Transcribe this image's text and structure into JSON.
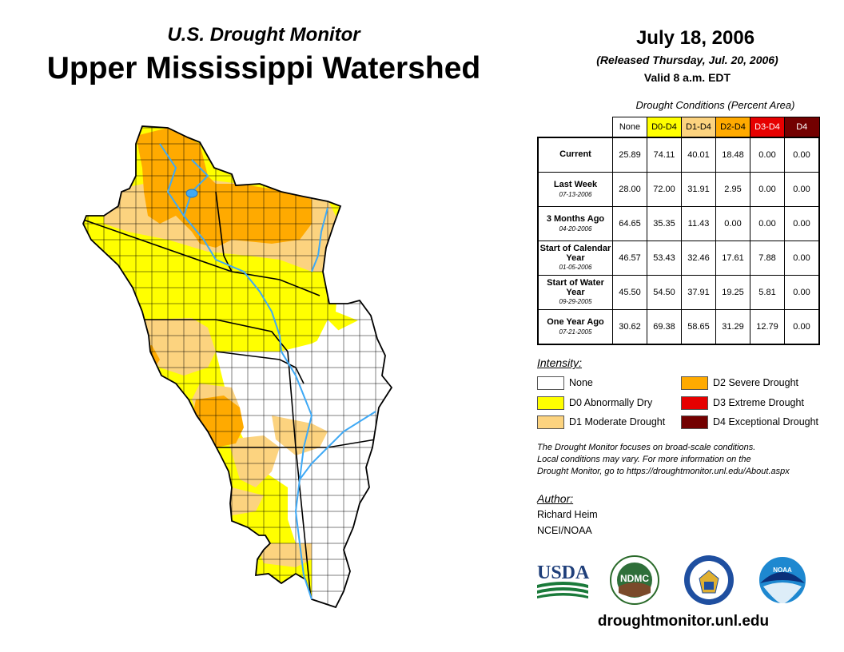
{
  "header": {
    "subtitle": "U.S. Drought Monitor",
    "title": "Upper Mississippi Watershed",
    "date": "July 18, 2006",
    "released": "(Released Thursday, Jul. 20, 2006)",
    "valid": "Valid 8 a.m. EDT"
  },
  "conditions_table": {
    "caption": "Drought Conditions (Percent Area)",
    "columns": [
      {
        "label": "None",
        "color": "#ffffff",
        "text_color": "#000000"
      },
      {
        "label": "D0-D4",
        "color": "#ffff00",
        "text_color": "#000000"
      },
      {
        "label": "D1-D4",
        "color": "#fcd37f",
        "text_color": "#000000"
      },
      {
        "label": "D2-D4",
        "color": "#ffaa00",
        "text_color": "#000000"
      },
      {
        "label": "D3-D4",
        "color": "#e60000",
        "text_color": "#ffffff"
      },
      {
        "label": "D4",
        "color": "#730000",
        "text_color": "#ffffff"
      }
    ],
    "rows": [
      {
        "label": "Current",
        "date": "",
        "values": [
          "25.89",
          "74.11",
          "40.01",
          "18.48",
          "0.00",
          "0.00"
        ]
      },
      {
        "label": "Last Week",
        "date": "07-13-2006",
        "values": [
          "28.00",
          "72.00",
          "31.91",
          "2.95",
          "0.00",
          "0.00"
        ]
      },
      {
        "label": "3 Months Ago",
        "date": "04-20-2006",
        "values": [
          "64.65",
          "35.35",
          "11.43",
          "0.00",
          "0.00",
          "0.00"
        ]
      },
      {
        "label": "Start of Calendar Year",
        "date": "01-05-2006",
        "values": [
          "46.57",
          "53.43",
          "32.46",
          "17.61",
          "7.88",
          "0.00"
        ]
      },
      {
        "label": "Start of Water Year",
        "date": "09-29-2005",
        "values": [
          "45.50",
          "54.50",
          "37.91",
          "19.25",
          "5.81",
          "0.00"
        ]
      },
      {
        "label": "One Year Ago",
        "date": "07-21-2005",
        "values": [
          "30.62",
          "69.38",
          "58.65",
          "31.29",
          "12.79",
          "0.00"
        ]
      }
    ]
  },
  "legend": {
    "title": "Intensity:",
    "items": [
      {
        "label": "None",
        "color": "#ffffff"
      },
      {
        "label": "D0 Abnormally Dry",
        "color": "#ffff00"
      },
      {
        "label": "D1 Moderate Drought",
        "color": "#fcd37f"
      },
      {
        "label": "D2 Severe Drought",
        "color": "#ffaa00"
      },
      {
        "label": "D3 Extreme Drought",
        "color": "#e60000"
      },
      {
        "label": "D4 Exceptional Drought",
        "color": "#730000"
      }
    ]
  },
  "note": {
    "line1": "The Drought Monitor focuses on broad-scale conditions.",
    "line2": "Local conditions may vary. For more information on the",
    "line3": "Drought Monitor, go to https://droughtmonitor.unl.edu/About.aspx"
  },
  "author": {
    "label": "Author:",
    "name": "Richard Heim",
    "org": "NCEI/NOAA"
  },
  "logos": {
    "usda": "USDA",
    "ndmc": "NDMC",
    "noaa": "NOAA"
  },
  "website": "droughtmonitor.unl.edu",
  "map": {
    "colors": {
      "d0": "#ffff00",
      "d1": "#fcd37f",
      "d2": "#ffaa00",
      "none": "#ffffff",
      "water": "#3fa9f5",
      "border": "#000000"
    }
  }
}
